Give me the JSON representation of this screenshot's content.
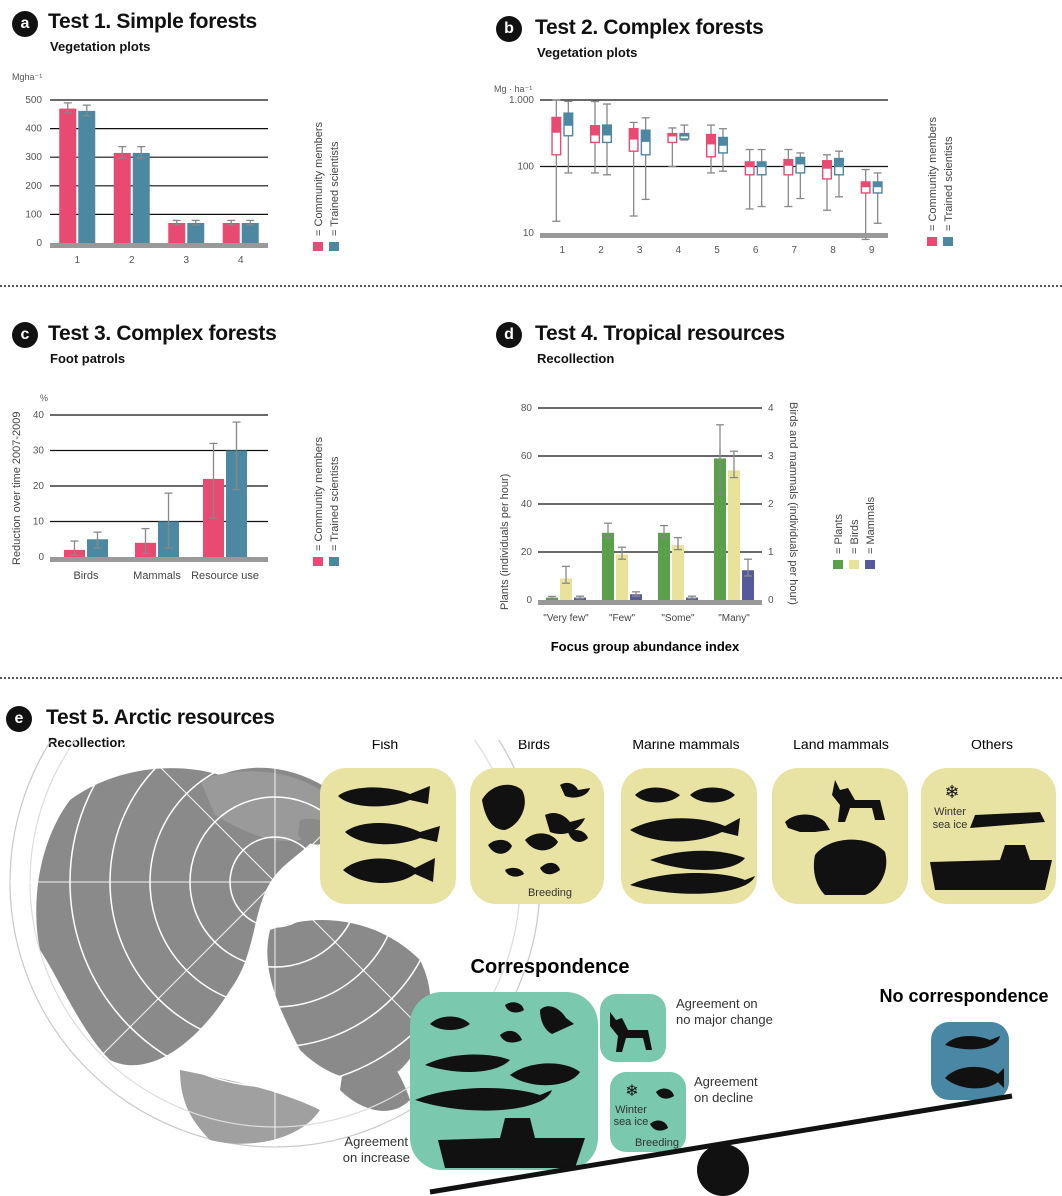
{
  "colors": {
    "community": "#e94a72",
    "scientists": "#4d88a2",
    "plants": "#5aa04a",
    "birds": "#e8e29a",
    "mammals": "#545a9a",
    "axis": "#999999",
    "grid": "#111111",
    "tan": "#e9e3a3",
    "teal": "#7ac8ad",
    "blue": "#4a87a4",
    "map": "#8a8a8a"
  },
  "panels": {
    "a": {
      "letter": "a",
      "title": "Test 1. Simple forests",
      "subtitle": "Vegetation plots"
    },
    "b": {
      "letter": "b",
      "title": "Test 2. Complex forests",
      "subtitle": "Vegetation plots"
    },
    "c": {
      "letter": "c",
      "title": "Test 3. Complex forests",
      "subtitle": "Foot patrols"
    },
    "d": {
      "letter": "d",
      "title": "Test 4. Tropical resources",
      "subtitle": "Recollection"
    },
    "e": {
      "letter": "e",
      "title": "Test 5. Arctic resources",
      "subtitle": "Recollection"
    }
  },
  "legend_labels": {
    "community": "= Community members",
    "scientists": "= Trained scientists",
    "plants": "= Plants",
    "birds": "= Birds",
    "mammals": "= Mammals"
  },
  "chart_data": [
    {
      "id": "a",
      "type": "bar",
      "unit_label": "Mgha⁻¹",
      "ylim": [
        0,
        500
      ],
      "yticks": [
        "0",
        "100",
        "200",
        "300",
        "400",
        "500"
      ],
      "categories": [
        "1",
        "2",
        "3",
        "4"
      ],
      "series": [
        {
          "name": "Community members",
          "values": [
            470,
            315,
            70,
            70
          ],
          "err_low": [
            455,
            297,
            63,
            63
          ],
          "err_high": [
            490,
            337,
            79,
            79
          ]
        },
        {
          "name": "Trained scientists",
          "values": [
            462,
            315,
            70,
            70
          ],
          "err_low": [
            445,
            297,
            63,
            63
          ],
          "err_high": [
            482,
            337,
            79,
            79
          ]
        }
      ],
      "legend": "right-vertical"
    },
    {
      "id": "b",
      "type": "boxplot",
      "unit_label": "Mg · ha⁻¹",
      "scale": "log",
      "ylim": [
        10,
        1000
      ],
      "yticks": [
        "10",
        "100",
        "1.000"
      ],
      "categories": [
        "1",
        "2",
        "3",
        "4",
        "5",
        "6",
        "7",
        "8",
        "9"
      ],
      "series": [
        {
          "name": "Community members",
          "q1": [
            150,
            230,
            170,
            230,
            140,
            75,
            75,
            65,
            40
          ],
          "med": [
            330,
            300,
            260,
            290,
            220,
            100,
            105,
            95,
            50
          ],
          "q3": [
            560,
            420,
            380,
            320,
            310,
            120,
            130,
            125,
            60
          ],
          "min": [
            15,
            80,
            18,
            100,
            80,
            23,
            25,
            22,
            8
          ],
          "max": [
            1000,
            950,
            460,
            380,
            420,
            180,
            180,
            150,
            90
          ]
        },
        {
          "name": "Trained scientists",
          "q1": [
            290,
            230,
            150,
            260,
            160,
            75,
            80,
            75,
            40
          ],
          "med": [
            420,
            300,
            240,
            290,
            210,
            100,
            110,
            100,
            50
          ],
          "q3": [
            650,
            430,
            360,
            320,
            280,
            120,
            140,
            135,
            60
          ],
          "min": [
            80,
            75,
            32,
            250,
            85,
            25,
            33,
            35,
            14
          ],
          "max": [
            950,
            870,
            540,
            420,
            370,
            180,
            160,
            170,
            80
          ]
        }
      ],
      "legend": "right-vertical"
    },
    {
      "id": "c",
      "type": "bar",
      "unit_label": "%",
      "ylabel": "Reduction over time 2007-2009",
      "ylim": [
        0,
        40
      ],
      "yticks": [
        "0",
        "10",
        "20",
        "30",
        "40"
      ],
      "categories": [
        "Birds",
        "Mammals",
        "Resource use"
      ],
      "series": [
        {
          "name": "Community members",
          "values": [
            2,
            4,
            22
          ],
          "err_low": [
            0.5,
            1,
            11
          ],
          "err_high": [
            4.5,
            8,
            32
          ]
        },
        {
          "name": "Trained scientists",
          "values": [
            5,
            10,
            30
          ],
          "err_low": [
            2.5,
            2.5,
            19
          ],
          "err_high": [
            7,
            18,
            38
          ]
        }
      ],
      "legend": "right-vertical"
    },
    {
      "id": "d",
      "type": "bar",
      "xlabel": "Focus group abundance index",
      "ylabel": "Plants (individuals per hour)",
      "ylim": [
        0,
        80
      ],
      "yticks": [
        "0",
        "20",
        "40",
        "60",
        "80"
      ],
      "y2label": "Birds and mammals (individuals per hour)",
      "y2lim": [
        0,
        4
      ],
      "y2ticks": [
        "0",
        "1",
        "2",
        "3",
        "4"
      ],
      "categories": [
        "\"Very few\"",
        "\"Few\"",
        "\"Some\"",
        "\"Many\""
      ],
      "series": [
        {
          "name": "Plants",
          "axis": "left",
          "values": [
            1,
            28,
            28,
            59
          ],
          "err_low": [
            0.5,
            26,
            26,
            44
          ],
          "err_high": [
            1.5,
            32,
            31,
            73
          ]
        },
        {
          "name": "Birds",
          "axis": "right",
          "values": [
            0.45,
            0.95,
            1.15,
            2.7
          ],
          "err_low": [
            0.35,
            0.85,
            1.05,
            2.55
          ],
          "err_high": [
            0.7,
            1.1,
            1.3,
            3.1
          ]
        },
        {
          "name": "Mammals",
          "axis": "right",
          "values": [
            0.05,
            0.12,
            0.05,
            0.62
          ],
          "err_low": [
            0.03,
            0.08,
            0.03,
            0.5
          ],
          "err_high": [
            0.08,
            0.17,
            0.08,
            0.85
          ]
        }
      ],
      "legend": "right-vertical"
    }
  ],
  "arctic": {
    "categories": [
      "Fish",
      "Birds",
      "Marine mammals",
      "Land mammals",
      "Others"
    ],
    "winter_ice": "Winter sea ice",
    "winter_l1": "Winter",
    "winter_l2": "sea ice",
    "breeding": "Breeding",
    "correspondence": "Correspondence",
    "no_correspondence": "No correspondence",
    "agree_increase_1": "Agreement",
    "agree_increase_2": "on increase",
    "agree_nochange_1": "Agreement on",
    "agree_nochange_2": "no major change",
    "agree_decline_1": "Agreement",
    "agree_decline_2": "on decline"
  }
}
